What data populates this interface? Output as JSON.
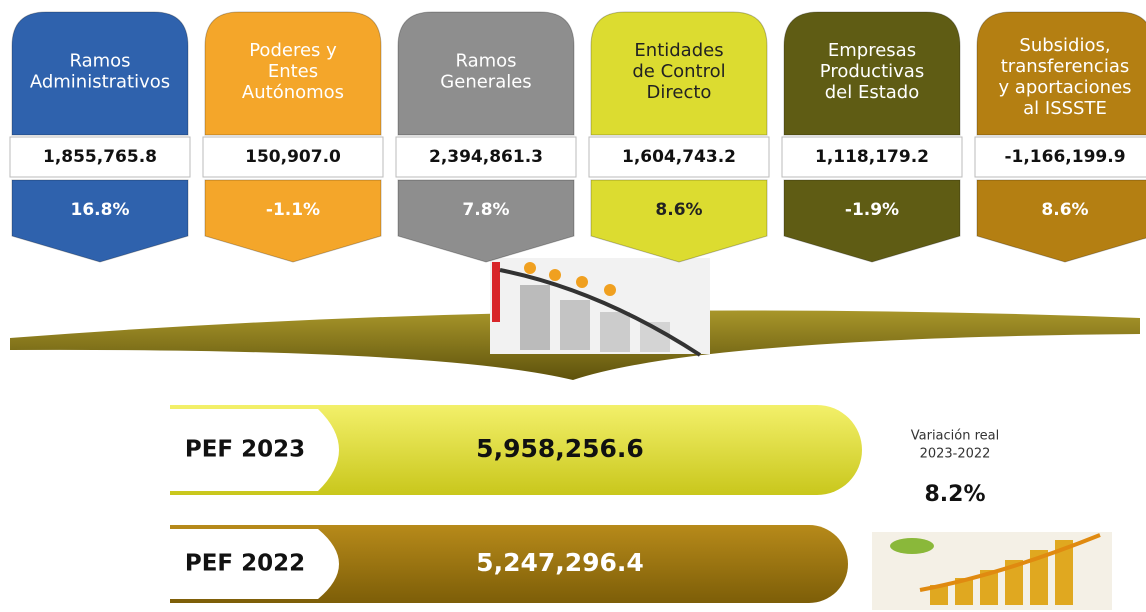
{
  "cards": [
    {
      "label_lines": [
        "Ramos",
        "Administrativos"
      ],
      "amount": "1,855,765.8",
      "change": "16.8%"
    },
    {
      "label_lines": [
        "Poderes y",
        "Entes",
        "Autónomos"
      ],
      "amount": "150,907.0",
      "change": "-1.1%"
    },
    {
      "label_lines": [
        "Ramos",
        "Generales"
      ],
      "amount": "2,394,861.3",
      "change": "7.8%"
    },
    {
      "label_lines": [
        "Entidades",
        "de Control",
        "Directo"
      ],
      "amount": "1,604,743.2",
      "change": "8.6%"
    },
    {
      "label_lines": [
        "Empresas",
        "Productivas",
        "del Estado"
      ],
      "amount": "1,118,179.2",
      "change": "-1.9%"
    },
    {
      "label_lines": [
        "Subsidios,",
        "transferencias",
        "y aportaciones",
        "al ISSSTE"
      ],
      "amount": "-1,166,199.9",
      "change": "8.6%"
    }
  ],
  "totals": [
    {
      "label": "PEF 2023",
      "amount": "5,958,256.6"
    },
    {
      "label": "PEF 2022",
      "amount": "5,247,296.4"
    }
  ],
  "variation": {
    "label_lines": [
      "Variación real",
      "2023-2022"
    ],
    "value": "8.2%"
  }
}
